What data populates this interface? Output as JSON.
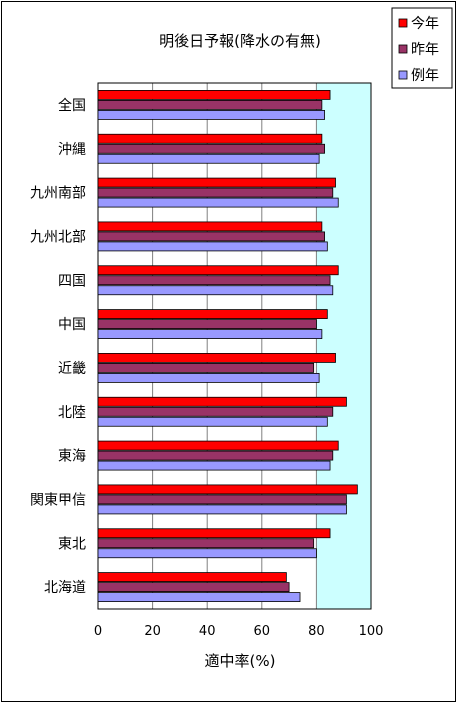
{
  "chart_data": {
    "type": "bar",
    "orientation": "horizontal",
    "title": "明後日予報(降水の有無)",
    "xlabel": "適中率(%)",
    "ylabel": "",
    "xlim": [
      0,
      100
    ],
    "x_ticks": [
      "0",
      "20",
      "40",
      "60",
      "80",
      "100"
    ],
    "grid": true,
    "highlight_band": [
      80,
      100
    ],
    "legend_position": "top-right",
    "categories": [
      "全国",
      "沖縄",
      "九州南部",
      "九州北部",
      "四国",
      "中国",
      "近畿",
      "北陸",
      "東海",
      "関東甲信",
      "東北",
      "北海道"
    ],
    "series": [
      {
        "name": "今年",
        "color": "#ff0000",
        "values": [
          85,
          82,
          87,
          82,
          88,
          84,
          87,
          91,
          88,
          95,
          85,
          69
        ]
      },
      {
        "name": "昨年",
        "color": "#993366",
        "values": [
          82,
          83,
          86,
          83,
          85,
          80,
          79,
          86,
          86,
          91,
          79,
          70
        ]
      },
      {
        "name": "例年",
        "color": "#9999ff",
        "values": [
          83,
          81,
          88,
          84,
          86,
          82,
          81,
          84,
          85,
          91,
          80,
          74
        ]
      }
    ],
    "colors": {
      "plot_bg": "#ffffff",
      "band_bg": "#ccffff",
      "border": "#000000",
      "gridline": "#808080"
    }
  }
}
